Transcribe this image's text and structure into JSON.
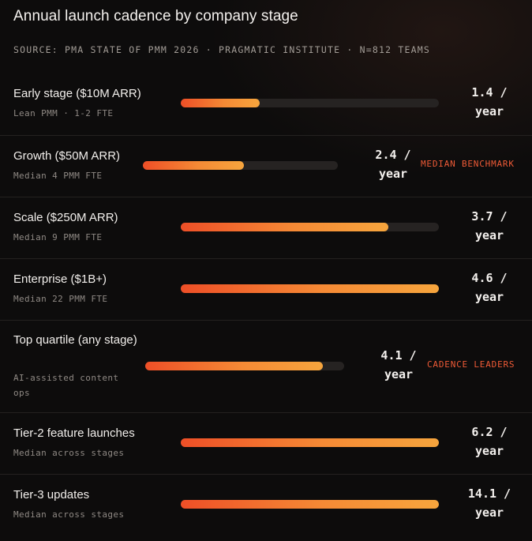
{
  "header": {
    "title": "Annual launch cadence by company stage",
    "source": "SOURCE: PMA STATE OF PMM 2026 · PRAGMATIC INSTITUTE · N=812 TEAMS"
  },
  "chart_data": {
    "type": "bar",
    "orientation": "horizontal",
    "title": "Annual launch cadence by company stage",
    "unit": "/ year",
    "categories": [
      "Early stage ($10M ARR)",
      "Growth ($50M ARR)",
      "Scale ($250M ARR)",
      "Enterprise ($1B+)",
      "Top quartile (any stage)",
      "Tier-2 feature launches",
      "Tier-3 updates"
    ],
    "subtitles": [
      "Lean PMM · 1-2 FTE",
      "Median 4 PMM FTE",
      "Median 9 PMM FTE",
      "Median 22 PMM FTE",
      "AI-assisted content ops",
      "Median across stages",
      "Median across stages"
    ],
    "values": [
      1.4,
      2.4,
      3.7,
      4.6,
      4.1,
      6.2,
      14.1
    ],
    "value_labels": [
      "1.4 /",
      "2.4 /",
      "3.7 /",
      "4.6 /",
      "4.1 /",
      "6.2 /",
      "14.1 /"
    ],
    "value_unit_label": "year",
    "fill_fraction": [
      0.305,
      0.52,
      0.804,
      1.0,
      0.891,
      1.0,
      1.0
    ],
    "annotations": [
      "",
      "MEDIAN BENCHMARK",
      "",
      "",
      "CADENCE LEADERS",
      "",
      ""
    ],
    "colors": {
      "bar_start": "#ee4f27",
      "bar_end": "#f6a53d",
      "track": "#262322",
      "badge": "#ee5a36"
    }
  }
}
